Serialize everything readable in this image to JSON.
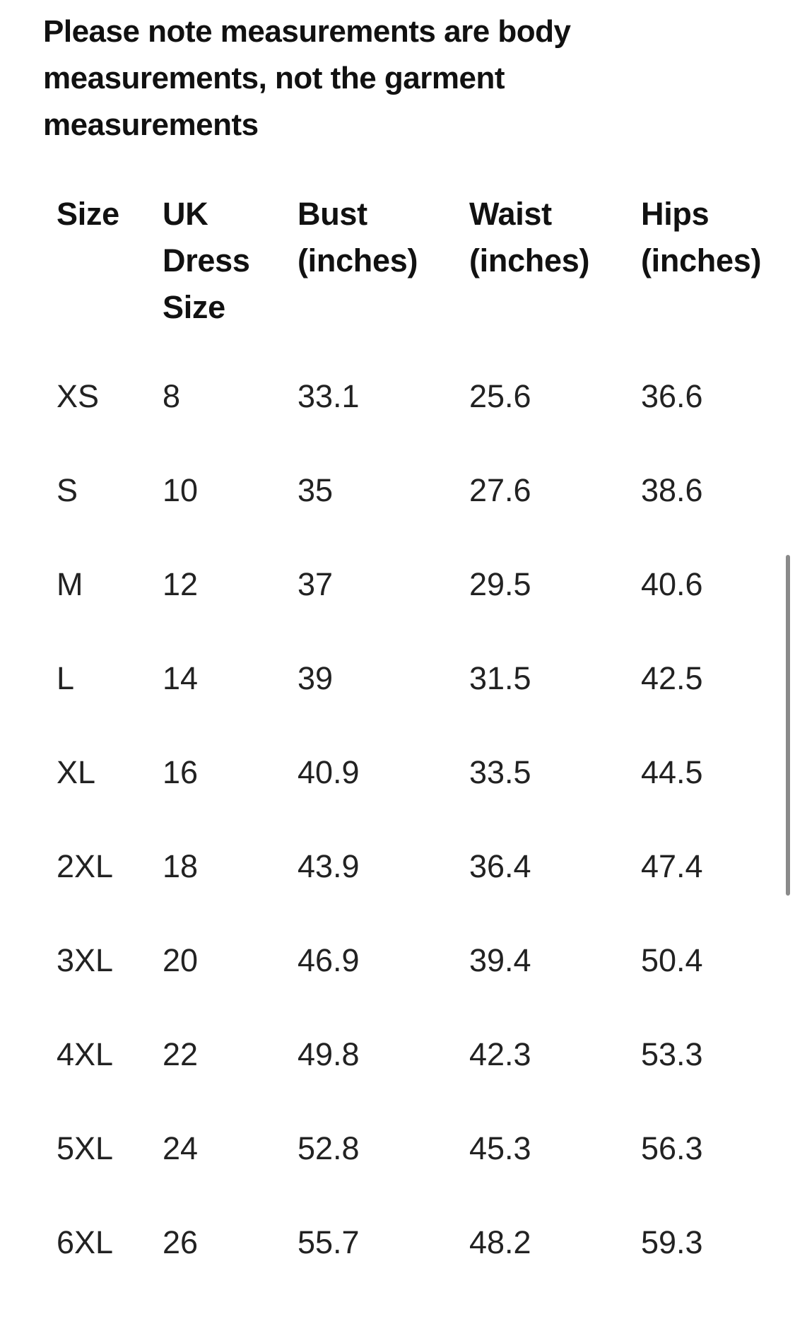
{
  "note": "Please note measurements are body measurements, not the garment measurements",
  "table": {
    "headers": [
      "Size",
      "UK Dress Size",
      "Bust (inches)",
      "Waist (inches)",
      "Hips (inches)"
    ],
    "rows": [
      [
        "XS",
        "8",
        "33.1",
        "25.6",
        "36.6"
      ],
      [
        "S",
        "10",
        "35",
        "27.6",
        "38.6"
      ],
      [
        "M",
        "12",
        "37",
        "29.5",
        "40.6"
      ],
      [
        "L",
        "14",
        "39",
        "31.5",
        "42.5"
      ],
      [
        "XL",
        "16",
        "40.9",
        "33.5",
        "44.5"
      ],
      [
        "2XL",
        "18",
        "43.9",
        "36.4",
        "47.4"
      ],
      [
        "3XL",
        "20",
        "46.9",
        "39.4",
        "50.4"
      ],
      [
        "4XL",
        "22",
        "49.8",
        "42.3",
        "53.3"
      ],
      [
        "5XL",
        "24",
        "52.8",
        "45.3",
        "56.3"
      ],
      [
        "6XL",
        "26",
        "55.7",
        "48.2",
        "59.3"
      ]
    ]
  }
}
